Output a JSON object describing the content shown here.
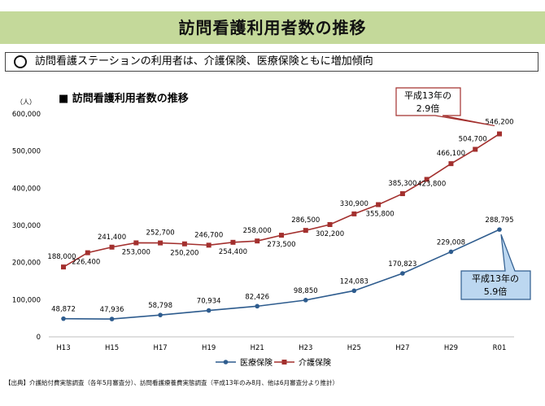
{
  "page": {
    "title": "訪問看護利用者数の推移",
    "summary": "訪問看護ステーションの利用者は、介護保険、医療保険ともに増加傾向",
    "source": "【出典】介護給付費実態調査（各年5月審査分）、訪問看護療養費実態調査（平成13年のみ8月、他は6月審査分より推計）"
  },
  "chart_data": {
    "type": "line",
    "title": "■ 訪問看護利用者数の推移",
    "ylabel": "（人）",
    "ylim": [
      0,
      600000
    ],
    "yticks": [
      0,
      100000,
      200000,
      300000,
      400000,
      500000,
      600000
    ],
    "ytick_labels": [
      "0",
      "100,000",
      "200,000",
      "300,000",
      "400,000",
      "500,000",
      "600,000"
    ],
    "x_count": 19,
    "xticks": [
      {
        "i": 0,
        "label": "H13"
      },
      {
        "i": 2,
        "label": "H15"
      },
      {
        "i": 4,
        "label": "H17"
      },
      {
        "i": 6,
        "label": "H19"
      },
      {
        "i": 8,
        "label": "H21"
      },
      {
        "i": 10,
        "label": "H23"
      },
      {
        "i": 12,
        "label": "H25"
      },
      {
        "i": 14,
        "label": "H27"
      },
      {
        "i": 16,
        "label": "H29"
      },
      {
        "i": 18,
        "label": "R01"
      }
    ],
    "legend_position": "bottom",
    "series": [
      {
        "name": "医療保険",
        "color": "#2e5c8e",
        "marker": "circle",
        "points": [
          {
            "i": 0,
            "value": 48872,
            "label": "48,872"
          },
          {
            "i": 2,
            "value": 47936,
            "label": "47,936"
          },
          {
            "i": 4,
            "value": 58798,
            "label": "58,798"
          },
          {
            "i": 6,
            "value": 70934,
            "label": "70,934"
          },
          {
            "i": 8,
            "value": 82426,
            "label": "82,426"
          },
          {
            "i": 10,
            "value": 98850,
            "label": "98,850"
          },
          {
            "i": 12,
            "value": 124083,
            "label": "124,083"
          },
          {
            "i": 14,
            "value": 170823,
            "label": "170,823"
          },
          {
            "i": 16,
            "value": 229008,
            "label": "229,008"
          },
          {
            "i": 18,
            "value": 288795,
            "label": "288,795"
          }
        ]
      },
      {
        "name": "介護保険",
        "color": "#a3302e",
        "marker": "square",
        "points": [
          {
            "i": 0,
            "value": 188000,
            "label": "188,000"
          },
          {
            "i": 1,
            "value": 226400,
            "label": "226,400"
          },
          {
            "i": 2,
            "value": 241400,
            "label": "241,400"
          },
          {
            "i": 3,
            "value": 253000,
            "label": "253,000"
          },
          {
            "i": 4,
            "value": 252700,
            "label": "252,700"
          },
          {
            "i": 5,
            "value": 250200,
            "label": "250,200"
          },
          {
            "i": 6,
            "value": 246700,
            "label": "246,700"
          },
          {
            "i": 7,
            "value": 254400,
            "label": "254,400"
          },
          {
            "i": 8,
            "value": 258000,
            "label": "258,000"
          },
          {
            "i": 9,
            "value": 273500,
            "label": "273,500"
          },
          {
            "i": 10,
            "value": 286500,
            "label": "286,500"
          },
          {
            "i": 11,
            "value": 302200,
            "label": "302,200"
          },
          {
            "i": 12,
            "value": 330900,
            "label": "330,900"
          },
          {
            "i": 13,
            "value": 355800,
            "label": "355,800"
          },
          {
            "i": 14,
            "value": 385300,
            "label": "385,300"
          },
          {
            "i": 15,
            "value": 423800,
            "label": "423,800"
          },
          {
            "i": 16,
            "value": 466100,
            "label": "466,100"
          },
          {
            "i": 17,
            "value": 504700,
            "label": "504,700"
          },
          {
            "i": 18,
            "value": 546200,
            "label": "546,200"
          }
        ]
      }
    ],
    "annotations": [
      {
        "line1": "平成13年の",
        "line2": "2.9倍",
        "series": "介護保険",
        "border": "#a3302e"
      },
      {
        "line1": "平成13年の",
        "line2": "5.9倍",
        "series": "医療保険",
        "border": "#2e5c8e",
        "fill": "#bcd7f0"
      }
    ]
  }
}
